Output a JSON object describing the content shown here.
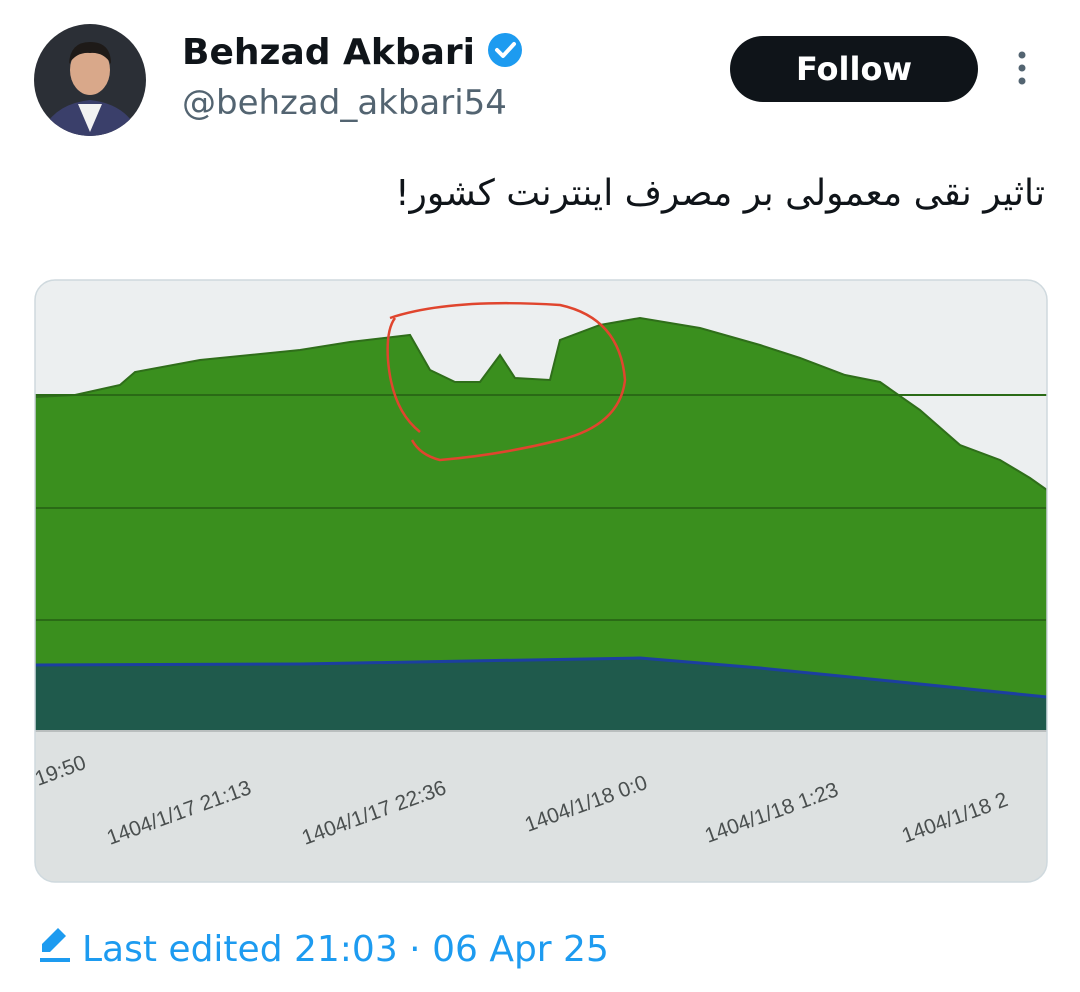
{
  "tweet": {
    "author": {
      "name": "Behzad Akbari",
      "handle": "@behzad_akbari54"
    },
    "follow_button": "Follow",
    "text": "تاثیر نقی معمولی بر مصرف اینترنت کشور!",
    "image": {
      "x_labels": [
        "19:50",
        "1404/1/17 21:13",
        "1404/1/17 22:36",
        "1404/1/18 0:0",
        "1404/1/18 1:23",
        "1404/1/18 2"
      ]
    },
    "footer": {
      "edited": "Last edited 21:03 · 06 Apr 25"
    }
  }
}
